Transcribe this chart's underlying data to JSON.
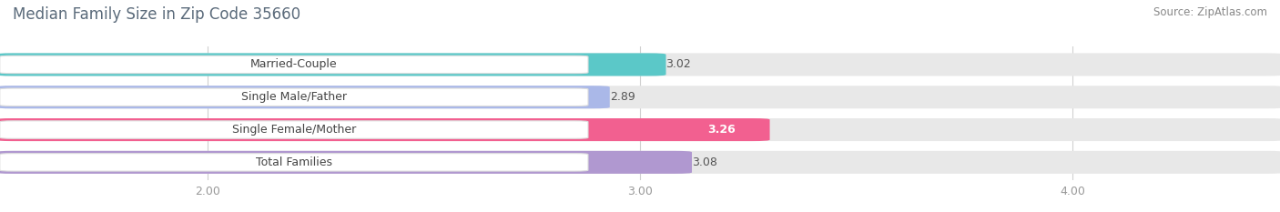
{
  "title": "Median Family Size in Zip Code 35660",
  "source": "Source: ZipAtlas.com",
  "categories": [
    "Married-Couple",
    "Single Male/Father",
    "Single Female/Mother",
    "Total Families"
  ],
  "values": [
    3.02,
    2.89,
    3.26,
    3.08
  ],
  "bar_colors": [
    "#5bc8c8",
    "#aab8e8",
    "#f26090",
    "#b098d0"
  ],
  "bar_bg_color": "#e8e8e8",
  "xlim": [
    1.55,
    4.45
  ],
  "xdata_min": 1.55,
  "xdata_max": 4.45,
  "xticks": [
    2.0,
    3.0,
    4.0
  ],
  "xtick_labels": [
    "2.00",
    "3.00",
    "4.00"
  ],
  "title_color": "#5a6a7a",
  "title_fontsize": 12,
  "source_fontsize": 8.5,
  "value_label_fontsize": 9,
  "bar_label_fontsize": 9,
  "background_color": "#ffffff",
  "bar_height": 0.62,
  "label_box_color": "#ffffff",
  "label_box_edge_color": "#dddddd",
  "value_inside_color": "#ffffff",
  "value_outside_color": "#555555",
  "value_inside_index": 2,
  "grid_color": "#d0d0d0",
  "tick_color": "#999999"
}
